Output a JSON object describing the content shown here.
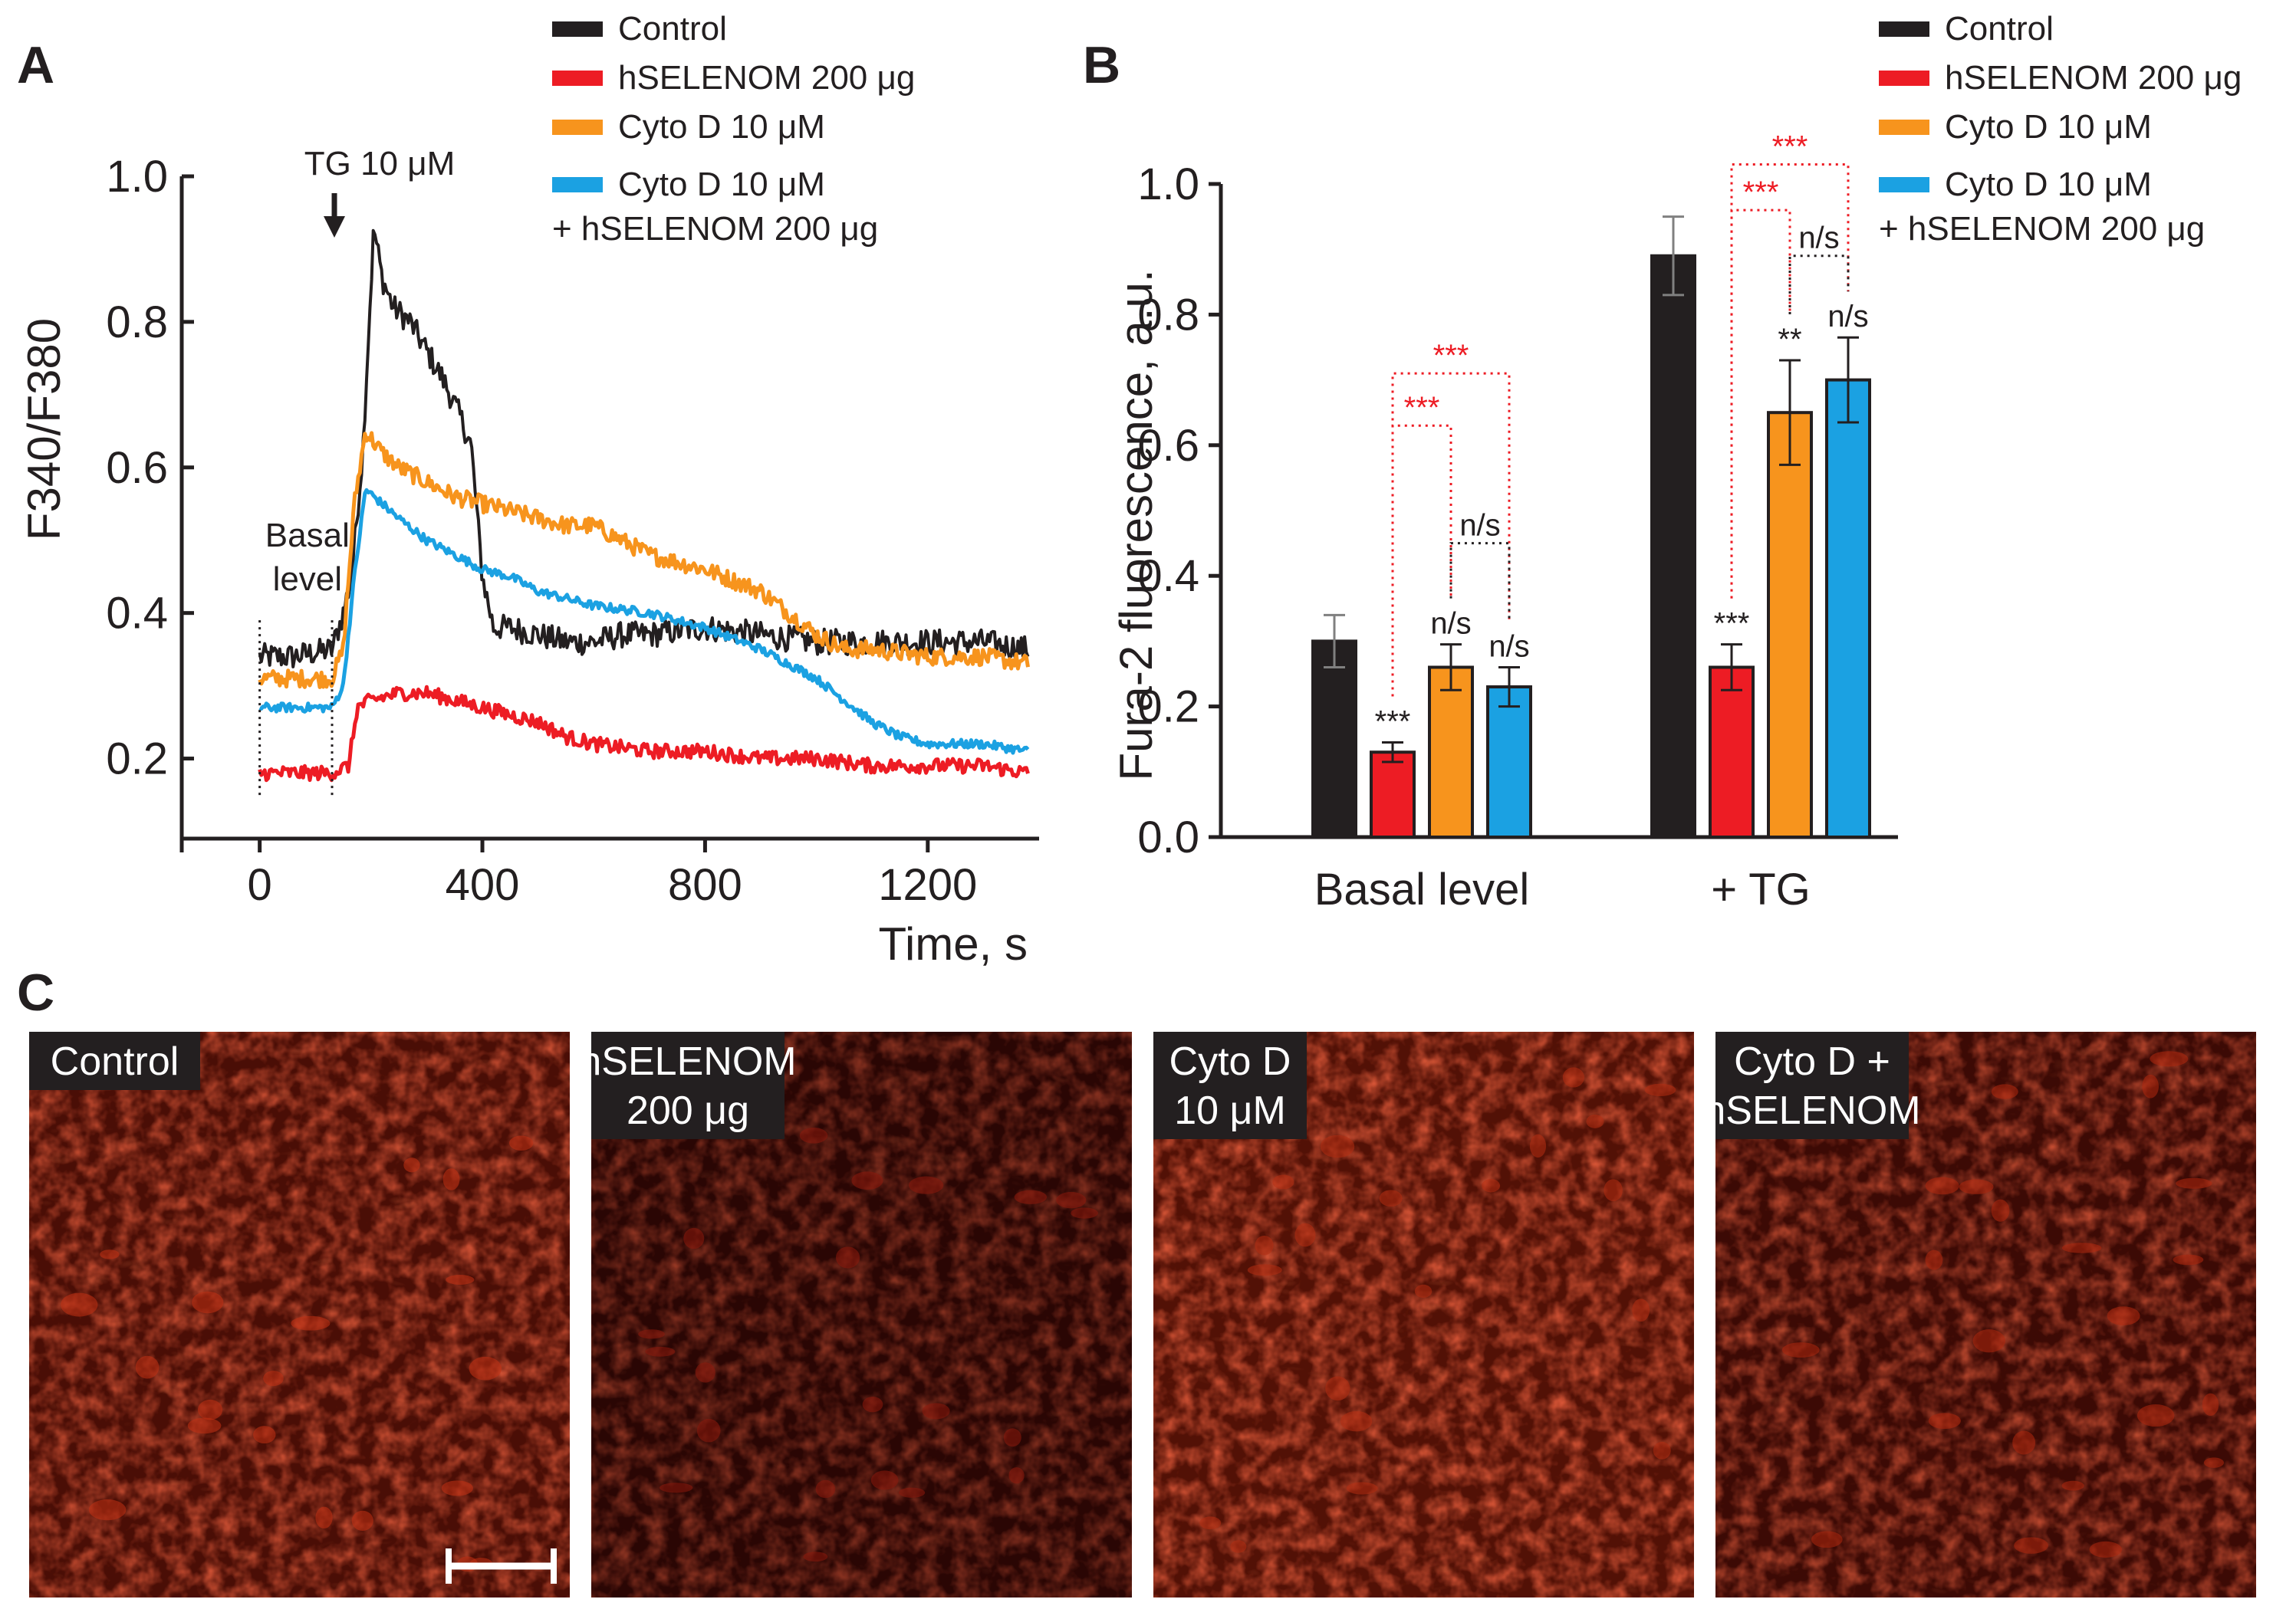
{
  "colors": {
    "control": "#231f20",
    "hselenom": "#ed1c24",
    "cytod": "#f7941d",
    "cytod_hselenom": "#1ba1e2",
    "ns_bracket": "#231f20",
    "sig_bracket": "#ed1c24"
  },
  "chart_data": [
    {
      "panel": "A",
      "type": "line",
      "xlabel": "Time, s",
      "ylabel": "F340/F380",
      "xlim": [
        -140,
        1400
      ],
      "ylim": [
        0.09,
        1.0
      ],
      "xticks": [
        0,
        400,
        800,
        1200
      ],
      "xtick_labels": [
        "0",
        "400",
        "800",
        "1200"
      ],
      "yticks": [
        0.2,
        0.4,
        0.6,
        0.8,
        1.0
      ],
      "ytick_labels": [
        "0.2",
        "0.4",
        "0.6",
        "0.8",
        "1.0"
      ],
      "annotations": {
        "tg_label": "TG 10 μM",
        "tg_time": 130,
        "basal_label_1": "Basal",
        "basal_label_2": "level",
        "basal_window": [
          0,
          130
        ]
      },
      "legend": [
        "Control",
        "hSELENOM 200 μg",
        "Cyto D 10 μM",
        "Cyto D 10 μM",
        "+ hSELENOM 200 μg"
      ],
      "series": [
        {
          "name": "Control",
          "color": "#231f20",
          "x": [
            0,
            60,
            130,
            150,
            165,
            185,
            205,
            220,
            240,
            270,
            300,
            330,
            360,
            380,
            400,
            420,
            450,
            500,
            550,
            600,
            650,
            700,
            800,
            900,
            1000,
            1100,
            1200,
            1300,
            1380
          ],
          "y": [
            0.34,
            0.34,
            0.35,
            0.4,
            0.45,
            0.62,
            0.93,
            0.86,
            0.82,
            0.8,
            0.76,
            0.72,
            0.67,
            0.63,
            0.45,
            0.38,
            0.38,
            0.37,
            0.36,
            0.36,
            0.37,
            0.37,
            0.38,
            0.37,
            0.36,
            0.36,
            0.36,
            0.36,
            0.35
          ]
        },
        {
          "name": "hSELENOM 200 μg",
          "color": "#ed1c24",
          "x": [
            0,
            60,
            130,
            160,
            175,
            200,
            250,
            300,
            350,
            400,
            450,
            500,
            550,
            600,
            700,
            800,
            900,
            1000,
            1100,
            1200,
            1300,
            1380
          ],
          "y": [
            0.18,
            0.18,
            0.18,
            0.19,
            0.27,
            0.28,
            0.29,
            0.29,
            0.28,
            0.27,
            0.26,
            0.25,
            0.23,
            0.22,
            0.21,
            0.21,
            0.2,
            0.2,
            0.19,
            0.19,
            0.19,
            0.18
          ]
        },
        {
          "name": "Cyto D 10 μM",
          "color": "#f7941d",
          "x": [
            0,
            60,
            130,
            150,
            170,
            190,
            220,
            250,
            300,
            350,
            400,
            450,
            500,
            550,
            600,
            700,
            800,
            900,
            1000,
            1050,
            1100,
            1200,
            1300,
            1380
          ],
          "y": [
            0.31,
            0.31,
            0.31,
            0.35,
            0.55,
            0.65,
            0.62,
            0.6,
            0.58,
            0.56,
            0.55,
            0.54,
            0.53,
            0.52,
            0.52,
            0.48,
            0.46,
            0.43,
            0.37,
            0.35,
            0.35,
            0.34,
            0.34,
            0.33
          ]
        },
        {
          "name": "Cyto D 10 μM + hSELENOM 200 μg",
          "color": "#1ba1e2",
          "x": [
            0,
            60,
            130,
            150,
            170,
            190,
            220,
            250,
            300,
            350,
            400,
            450,
            500,
            550,
            600,
            700,
            800,
            900,
            1000,
            1050,
            1100,
            1150,
            1200,
            1300,
            1380
          ],
          "y": [
            0.27,
            0.27,
            0.27,
            0.3,
            0.45,
            0.57,
            0.55,
            0.53,
            0.5,
            0.48,
            0.46,
            0.45,
            0.43,
            0.42,
            0.41,
            0.4,
            0.38,
            0.35,
            0.31,
            0.28,
            0.25,
            0.23,
            0.22,
            0.22,
            0.21
          ]
        }
      ]
    },
    {
      "panel": "B",
      "type": "bar",
      "ylabel": "Fura-2 fluorescence, a.u.",
      "ylim": [
        0.0,
        1.0
      ],
      "yticks": [
        0.0,
        0.2,
        0.4,
        0.6,
        0.8,
        1.0
      ],
      "ytick_labels": [
        "0.0",
        "0.2",
        "0.4",
        "0.6",
        "0.8",
        "1.0"
      ],
      "categories": [
        "Basal level",
        "+ TG"
      ],
      "legend": [
        "Control",
        "hSELENOM 200 μg",
        "Cyto D 10 μM",
        "Cyto D 10 μM",
        "+ hSELENOM 200 μg"
      ],
      "series": [
        {
          "name": "Control",
          "color": "#231f20",
          "values": [
            0.3,
            0.89
          ],
          "errors": [
            0.04,
            0.06
          ],
          "labels": [
            "",
            ""
          ]
        },
        {
          "name": "hSELENOM 200 μg",
          "color": "#ed1c24",
          "values": [
            0.13,
            0.26
          ],
          "errors": [
            0.015,
            0.035
          ],
          "labels": [
            "***",
            "***"
          ]
        },
        {
          "name": "Cyto D 10 μM",
          "color": "#f7941d",
          "values": [
            0.26,
            0.65
          ],
          "errors": [
            0.035,
            0.08
          ],
          "labels": [
            "n/s",
            "**"
          ]
        },
        {
          "name": "Cyto D 10 μM + hSELENOM 200 μg",
          "color": "#1ba1e2",
          "values": [
            0.23,
            0.7
          ],
          "errors": [
            0.03,
            0.065
          ],
          "labels": [
            "n/s",
            "n/s"
          ]
        }
      ],
      "brackets": [
        {
          "group": 0,
          "from": 1,
          "to": 3,
          "text": "***",
          "color": "#ed1c24",
          "level": 0.71
        },
        {
          "group": 0,
          "from": 1,
          "to": 2,
          "text": "***",
          "color": "#ed1c24",
          "level": 0.63
        },
        {
          "group": 0,
          "from": 2,
          "to": 3,
          "text": "n/s",
          "color": "#231f20",
          "level": 0.45
        },
        {
          "group": 1,
          "from": 1,
          "to": 3,
          "text": "***",
          "color": "#ed1c24",
          "level": 1.03
        },
        {
          "group": 1,
          "from": 1,
          "to": 2,
          "text": "***",
          "color": "#ed1c24",
          "level": 0.96
        },
        {
          "group": 1,
          "from": 2,
          "to": 3,
          "text": "n/s",
          "color": "#231f20",
          "level": 0.89
        }
      ]
    }
  ],
  "panels": {
    "a_letter": "A",
    "b_letter": "B",
    "c_letter": "C"
  },
  "micrographs": [
    {
      "line1": "Control",
      "line2": "",
      "brightness": 0.85,
      "base": "#4a0e06",
      "spot": "#c23214"
    },
    {
      "line1": "hSELENOM",
      "line2": "200 μg",
      "brightness": 0.55,
      "base": "#2a0604",
      "spot": "#8e1a0c"
    },
    {
      "line1": "Cyto D",
      "line2": "10 μM",
      "brightness": 0.9,
      "base": "#521106",
      "spot": "#b52e13"
    },
    {
      "line1": "Cyto D +",
      "line2": "hSELENOM",
      "brightness": 0.75,
      "base": "#3c0a05",
      "spot": "#b0280f"
    }
  ]
}
